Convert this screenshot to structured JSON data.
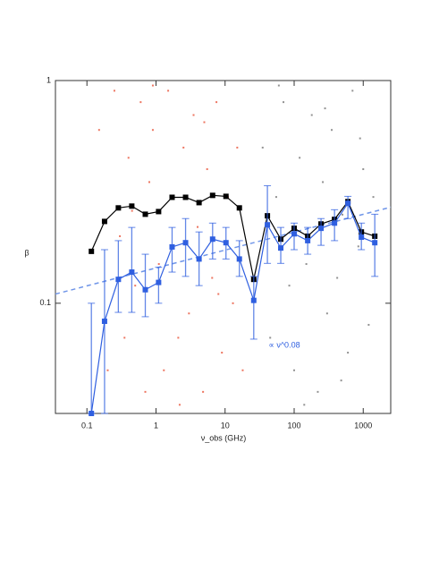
{
  "chart_data": {
    "type": "scatter-errorbar",
    "x_label": "ν_obs (GHz)",
    "y_label": "β",
    "annotation": "∝ ν^0.08",
    "xscale": "log",
    "yscale": "log",
    "xlim": [
      0.035,
      2500
    ],
    "ylim": [
      0.032,
      1
    ],
    "xticks": [
      0.1,
      1,
      10,
      100,
      1000
    ],
    "yticks": [
      0.1,
      1
    ],
    "scatter": [
      {
        "color": "#e8543a",
        "x": [
          0.15,
          0.2,
          0.25,
          0.3,
          0.35,
          0.4,
          0.5,
          0.6,
          0.7,
          0.8,
          0.9,
          1.1,
          1.3,
          1.5,
          1.8,
          2.1,
          2.5,
          3,
          3.5,
          4,
          4.8,
          5.5,
          6.5,
          7.5,
          9,
          11,
          13,
          15,
          18,
          0.45,
          0.9,
          2.2,
          5,
          8
        ],
        "y": [
          0.6,
          0.05,
          0.9,
          0.2,
          0.07,
          0.45,
          0.12,
          0.8,
          0.04,
          0.35,
          0.6,
          0.15,
          0.05,
          0.9,
          0.3,
          0.07,
          0.5,
          0.09,
          0.7,
          0.22,
          0.04,
          0.4,
          0.13,
          0.8,
          0.06,
          0.3,
          0.1,
          0.5,
          0.05,
          0.26,
          0.95,
          0.035,
          0.65,
          0.11
        ]
      },
      {
        "color": "#777777",
        "x": [
          35,
          45,
          55,
          70,
          85,
          100,
          120,
          150,
          180,
          220,
          260,
          300,
          350,
          420,
          500,
          600,
          700,
          850,
          1000,
          1200,
          1400,
          60,
          140,
          280,
          480,
          900
        ],
        "y": [
          0.5,
          0.07,
          0.3,
          0.8,
          0.12,
          0.05,
          0.45,
          0.15,
          0.7,
          0.04,
          0.35,
          0.09,
          0.6,
          0.13,
          0.25,
          0.06,
          0.9,
          0.18,
          0.4,
          0.08,
          0.3,
          0.95,
          0.035,
          0.75,
          0.045,
          0.55
        ]
      }
    ],
    "series": [
      {
        "color": "#000000",
        "x": [
          0.116,
          0.18,
          0.285,
          0.446,
          0.7,
          1.09,
          1.71,
          2.68,
          4.2,
          6.6,
          10.3,
          16.1,
          26,
          41,
          64,
          100,
          157,
          245,
          384,
          600,
          940,
          1470
        ],
        "values": [
          0.171,
          0.233,
          0.268,
          0.273,
          0.251,
          0.258,
          0.299,
          0.299,
          0.283,
          0.305,
          0.302,
          0.268,
          0.128,
          0.247,
          0.194,
          0.217,
          0.2,
          0.227,
          0.238,
          0.286,
          0.209,
          0.2
        ]
      },
      {
        "color": "#2f5fe0",
        "x": [
          0.116,
          0.18,
          0.285,
          0.446,
          0.7,
          1.09,
          1.71,
          2.68,
          4.2,
          6.6,
          10.3,
          16.1,
          26,
          41,
          64,
          100,
          157,
          245,
          384,
          600,
          940,
          1470
        ],
        "values": [
          0.032,
          0.083,
          0.128,
          0.138,
          0.115,
          0.124,
          0.179,
          0.187,
          0.158,
          0.194,
          0.187,
          0.158,
          0.103,
          0.225,
          0.177,
          0.205,
          0.191,
          0.217,
          0.229,
          0.281,
          0.198,
          0.187
        ],
        "err_high": [
          0.1,
          0.174,
          0.191,
          0.219,
          0.166,
          0.145,
          0.219,
          0.24,
          0.209,
          0.229,
          0.219,
          0.191,
          0.132,
          0.337,
          0.219,
          0.229,
          0.219,
          0.24,
          0.263,
          0.302,
          0.229,
          0.251
        ],
        "err_low": [
          0.032,
          0.032,
          0.091,
          0.091,
          0.087,
          0.1,
          0.138,
          0.132,
          0.12,
          0.158,
          0.158,
          0.132,
          0.069,
          0.151,
          0.151,
          0.174,
          0.166,
          0.182,
          0.191,
          0.24,
          0.174,
          0.132
        ]
      }
    ],
    "fit": {
      "color": "#6f95e8",
      "x": [
        0.035,
        2500
      ],
      "values": [
        0.11,
        0.27
      ]
    }
  }
}
